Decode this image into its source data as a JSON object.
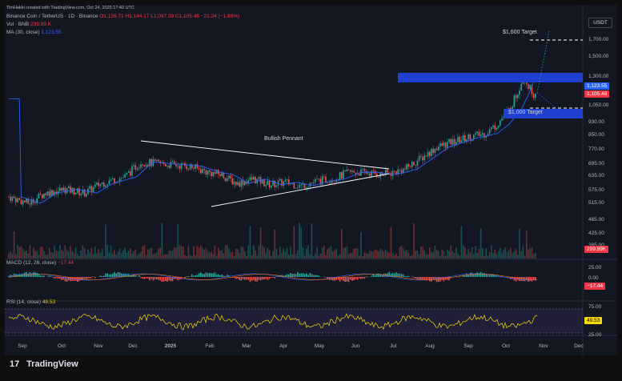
{
  "watermark": "TimHakki created with TradingView.com, Oct 24, 2025 17:40 UTC",
  "header": {
    "symbol": "Binance Coin / TetherUS · 1D · Binance",
    "ohlc": "O1,126.71 H1,144.17 L1,097.39 C1,105.48 −21.24 (−1.89%)",
    "vol_label": "Vol · BNB",
    "vol_value": "299.99 K",
    "ma_label": "MA (30, close)",
    "ma_value": "1,123.55"
  },
  "currency": "USDT",
  "footer_brand": "TradingView",
  "chart_data": [
    {
      "type": "candlestick",
      "pane": "price",
      "y_ticks": [
        "1,700.00",
        "1,500.00",
        "1,300.00",
        "1,050.00",
        "930.00",
        "850.00",
        "770.00",
        "695.00",
        "635.00",
        "575.00",
        "515.00",
        "465.00",
        "425.00",
        "385.00"
      ],
      "x_ticks": [
        "Sep",
        "Oct",
        "Nov",
        "Dec",
        "2025",
        "Feb",
        "Mar",
        "Apr",
        "May",
        "Jun",
        "Jul",
        "Aug",
        "Sep",
        "Oct",
        "Nov",
        "Dec"
      ],
      "close_approx": [
        {
          "x": "Sep",
          "y": 545
        },
        {
          "x": "Oct",
          "y": 580
        },
        {
          "x": "Nov",
          "y": 590
        },
        {
          "x": "Dec",
          "y": 700
        },
        {
          "x": "2025",
          "y": 695
        },
        {
          "x": "Feb",
          "y": 630
        },
        {
          "x": "Mar",
          "y": 600
        },
        {
          "x": "Apr",
          "y": 585
        },
        {
          "x": "May",
          "y": 600
        },
        {
          "x": "Jun",
          "y": 655
        },
        {
          "x": "Jul",
          "y": 660
        },
        {
          "x": "Aug",
          "y": 800
        },
        {
          "x": "Sep",
          "y": 860
        },
        {
          "x": "Oct",
          "y": 1200
        },
        {
          "x": "Oct",
          "y": 1105.48
        }
      ],
      "price_labels": {
        "ma": "1,123.55",
        "last": "1,105.48"
      },
      "annotations": [
        "Bullish Pennant",
        "$1,600 Target",
        "$1,000 Target"
      ],
      "colors": {
        "up": "#26a69a",
        "down": "#ef5350",
        "ma": "#2962ff",
        "zone": "#1e3fd0"
      }
    },
    {
      "type": "bar",
      "pane": "volume",
      "label": "Vol · BNB",
      "last_label": "299.99K"
    },
    {
      "type": "histogram",
      "pane": "macd",
      "title": "MACD (12, 26, close)",
      "value": "−17.44",
      "y_ticks": [
        "25.00",
        "0.00"
      ],
      "last_label": "−17.44"
    },
    {
      "type": "line",
      "pane": "rsi",
      "title": "RSI (14, close)",
      "value": "49.53",
      "y_ticks": [
        "75.00",
        "25.00"
      ],
      "last_label": "49.53",
      "bands": [
        70,
        30
      ],
      "color": "#f5d90a"
    }
  ]
}
